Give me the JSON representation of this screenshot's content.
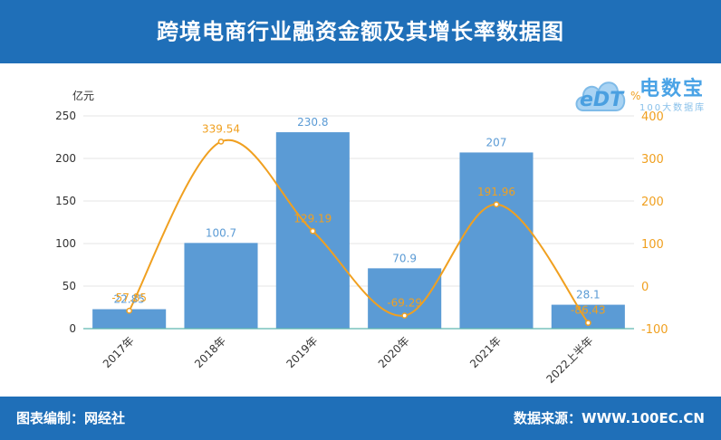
{
  "header": {
    "title": "跨境电商行业融资金额及其增长率数据图"
  },
  "footer": {
    "left": "图表编制：网经社",
    "right": "数据来源：WWW.100EC.CN"
  },
  "logo": {
    "mark": "eDT",
    "name": "电数宝",
    "sub": "100大数据库"
  },
  "colors": {
    "bar": "#5b9bd5",
    "line": "#f0a020",
    "header": "#1f6fb8",
    "bar_label": "#5b9bd5",
    "line_label": "#f0a020"
  },
  "chart_data": {
    "type": "bar",
    "categories": [
      "2017年",
      "2018年",
      "2019年",
      "2020年",
      "2021年",
      "2022上半年"
    ],
    "series": [
      {
        "name": "",
        "type": "bar",
        "axis": "left",
        "values": [
          22.85,
          100.7,
          230.8,
          70.9,
          207,
          28.1
        ]
      },
      {
        "name": "",
        "type": "line",
        "axis": "right",
        "values": [
          -57.85,
          339.54,
          129.19,
          -69.29,
          191.96,
          -86.43
        ]
      }
    ],
    "bar_labels": [
      "22.85",
      "100.7",
      "230.8",
      "70.9",
      "207",
      "28.1"
    ],
    "line_labels": [
      "-57.85",
      "339.54",
      "129.19",
      "-69.29",
      "191.96",
      "-86.43"
    ],
    "y_left": {
      "unit": "亿元",
      "range": [
        0,
        250
      ],
      "ticks": [
        "0",
        "50",
        "100",
        "150",
        "200",
        "250"
      ]
    },
    "y_right": {
      "unit": "%",
      "range": [
        -100,
        400
      ],
      "ticks": [
        "-100",
        "0",
        "100",
        "200",
        "300",
        "400"
      ]
    },
    "grid": true
  }
}
